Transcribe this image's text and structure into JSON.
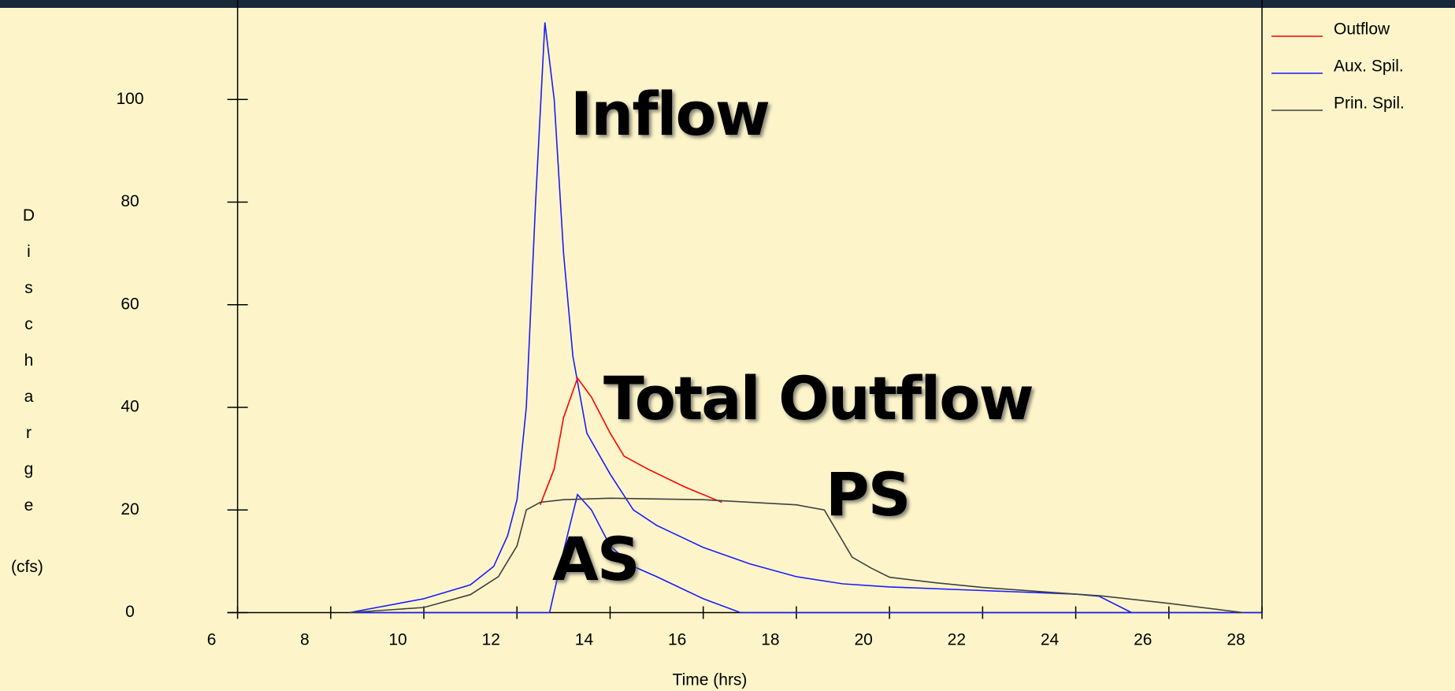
{
  "chart_data": {
    "type": "line",
    "x_label": "Time (hrs)",
    "y_label": "Discharge",
    "y_unit": "(cfs)",
    "xlim": [
      6,
      28
    ],
    "xticks": [
      6,
      8,
      10,
      12,
      14,
      16,
      18,
      20,
      22,
      24,
      26,
      28
    ],
    "ylim": [
      0,
      118
    ],
    "yticks": [
      0,
      20,
      40,
      60,
      80,
      100
    ],
    "annotations": [
      {
        "text": "Inflow",
        "color": "#0a0adc"
      },
      {
        "text": "Total Outflow",
        "color": "#e00000"
      },
      {
        "text": "PS",
        "color": "#000000"
      },
      {
        "text": "AS",
        "color": "#0a0adc"
      }
    ],
    "series": [
      {
        "name": "Inflow",
        "color": "#1a1aff",
        "x": [
          8.4,
          10,
          11,
          11.5,
          11.8,
          12.0,
          12.2,
          12.4,
          12.6,
          12.8,
          13.0,
          13.2,
          13.5,
          14.0,
          14.5,
          15.0,
          16.0,
          17.0,
          18.0,
          19.0,
          20.0,
          22.0,
          24.0,
          24.5,
          25.2
        ],
        "values": [
          0,
          2.7,
          5.4,
          9,
          15,
          22,
          40,
          80,
          115,
          100,
          70,
          50,
          35,
          27,
          20,
          17,
          12.7,
          9.5,
          7,
          5.6,
          5,
          4.3,
          3.6,
          3.2,
          0
        ]
      },
      {
        "name": "Outflow",
        "color": "#ff0000",
        "x": [
          12.5,
          12.8,
          13.0,
          13.3,
          13.6,
          14.0,
          14.3,
          14.8,
          15.6,
          16.4
        ],
        "values": [
          21,
          28,
          38,
          45.7,
          42,
          35,
          30.5,
          28,
          24.5,
          21.5
        ]
      },
      {
        "name": "Aux. Spil.",
        "color": "#1a1aff",
        "x": [
          8.5,
          12.7,
          13.0,
          13.3,
          13.6,
          14.0,
          14.5,
          15.0,
          16.0,
          16.8,
          28
        ],
        "values": [
          0,
          0,
          12,
          23,
          20,
          13,
          9,
          7,
          2.7,
          0,
          0
        ]
      },
      {
        "name": "Prin. Spil.",
        "color": "#404040",
        "x": [
          8.4,
          10,
          11,
          11.6,
          12.0,
          12.2,
          12.5,
          13.0,
          14.0,
          16.0,
          18.0,
          18.6,
          19.2,
          19.6,
          20.0,
          21.0,
          22.0,
          24.0,
          24.5,
          26.0,
          27.6
        ],
        "values": [
          0,
          1,
          3.5,
          7,
          13,
          20,
          21.5,
          22,
          22.3,
          22,
          21,
          20,
          10.8,
          8.7,
          6.9,
          5.8,
          4.9,
          3.6,
          3.3,
          1.8,
          0
        ]
      }
    ]
  }
}
